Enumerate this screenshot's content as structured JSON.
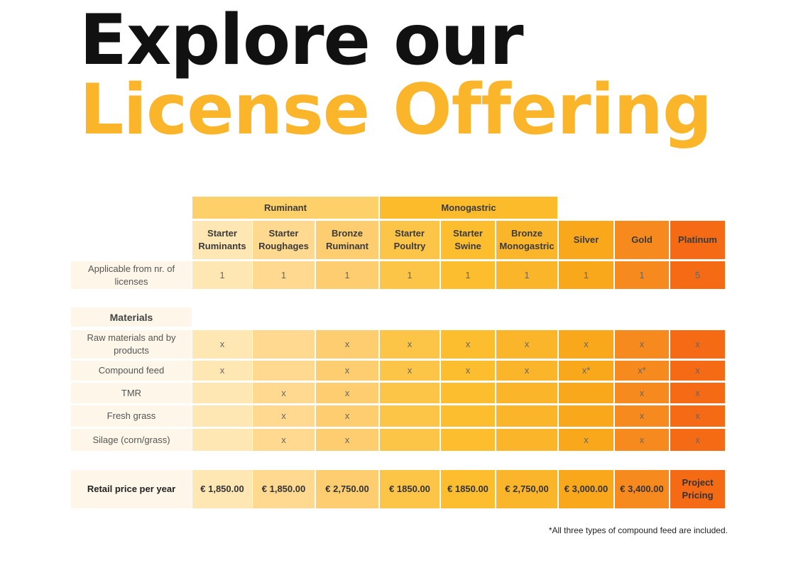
{
  "title": {
    "line1": "Explore our",
    "line2": "License Offering"
  },
  "groups": [
    {
      "label": "Ruminant",
      "span": [
        0,
        2
      ]
    },
    {
      "label": "Monogastric",
      "span": [
        3,
        5
      ]
    }
  ],
  "columns": [
    {
      "name": "Starter\nRuminants",
      "color": "#FEE7B2"
    },
    {
      "name": "Starter\nRoughages",
      "color": "#FED98F"
    },
    {
      "name": "Bronze\nRuminant",
      "color": "#FDCD6F"
    },
    {
      "name": "Starter\nPoultry",
      "color": "#FDC548"
    },
    {
      "name": "Starter\nSwine",
      "color": "#FCBE2F"
    },
    {
      "name": "Bronze\nMonogastric",
      "color": "#FBB52B"
    },
    {
      "name": "Silver",
      "color": "#F9A81C"
    },
    {
      "name": "Gold",
      "color": "#F78A1E"
    },
    {
      "name": "Platinum",
      "color": "#F56A15"
    }
  ],
  "applicable": {
    "label": "Applicable from nr. of licenses",
    "values": [
      "1",
      "1",
      "1",
      "1",
      "1",
      "1",
      "1",
      "1",
      "5"
    ]
  },
  "materials_heading": "Materials",
  "materials": [
    {
      "label": "Raw materials and by products",
      "values": [
        "x",
        "",
        "x",
        "x",
        "x",
        "x",
        "x",
        "x",
        "x"
      ]
    },
    {
      "label": "Compound feed",
      "values": [
        "x",
        "",
        "x",
        "x",
        "x",
        "x",
        "x*",
        "x*",
        "x"
      ]
    },
    {
      "label": "TMR",
      "values": [
        "",
        "x",
        "x",
        "",
        "",
        "",
        "",
        "x",
        "x"
      ]
    },
    {
      "label": "Fresh grass",
      "values": [
        "",
        "x",
        "x",
        "",
        "",
        "",
        "",
        "x",
        "x"
      ]
    },
    {
      "label": "Silage (corn/grass)",
      "values": [
        "",
        "x",
        "x",
        "",
        "",
        "",
        "x",
        "x",
        "x"
      ]
    }
  ],
  "price": {
    "label": "Retail price per year",
    "values": [
      "€ 1,850.00",
      "€ 1,850.00",
      "€ 2,750.00",
      "€ 1850.00",
      "€ 1850.00",
      "€ 2,750,00",
      "€ 3,000.00",
      "€ 3,400.00",
      "Project\nPricing"
    ]
  },
  "footnote": "*All three types of compound feed are included."
}
